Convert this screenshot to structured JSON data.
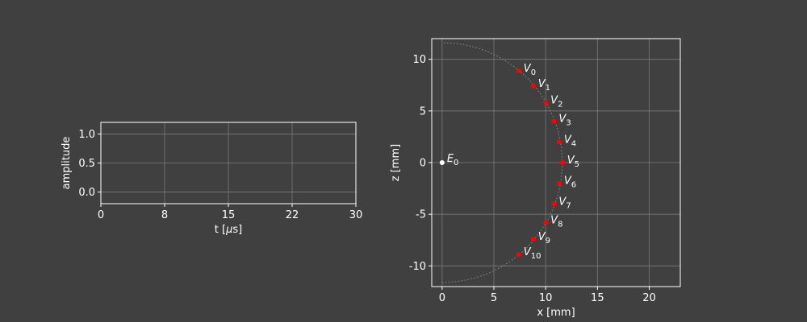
{
  "colors": {
    "background": "#404040",
    "axes": "#ffffff",
    "grid": "#7a7a7a",
    "element_points": "#ff0000",
    "emitter_point": "#ffffff",
    "arc": "#8c8c8c"
  },
  "chart_data": [
    {
      "type": "line",
      "title": "",
      "xlabel": "t [μs]",
      "ylabel": "amplitude",
      "xlim": [
        0,
        30
      ],
      "ylim": [
        -0.2,
        1.2
      ],
      "xticks": [
        0,
        7.5,
        15,
        22.5,
        30
      ],
      "xtick_labels": [
        "0",
        "8",
        "15",
        "22",
        "30"
      ],
      "yticks": [
        0.0,
        0.5,
        1.0
      ],
      "ytick_labels": [
        "0.0",
        "0.5",
        "1.0"
      ],
      "grid": true,
      "series": []
    },
    {
      "type": "scatter",
      "title": "",
      "xlabel": "x [mm]",
      "ylabel": "z [mm]",
      "xlim": [
        -1,
        23
      ],
      "ylim": [
        -12,
        12
      ],
      "xticks": [
        0,
        5,
        10,
        15,
        20
      ],
      "xtick_labels": [
        "0",
        "5",
        "10",
        "15",
        "20"
      ],
      "yticks": [
        10,
        5,
        0,
        -5,
        -10
      ],
      "ytick_labels": [
        "10",
        "5",
        "0",
        "-5",
        "-10"
      ],
      "grid": true,
      "arc": {
        "radius": 11.6,
        "theta_start_deg": -90,
        "theta_end_deg": 90,
        "style": "dotted"
      },
      "receivers": {
        "base": "V",
        "x": [
          7.4,
          8.8,
          10.0,
          10.8,
          11.3,
          11.6,
          11.3,
          10.8,
          10.0,
          8.8,
          7.4
        ],
        "z": [
          8.9,
          7.4,
          5.8,
          4.0,
          2.0,
          0.0,
          -2.0,
          -4.0,
          -5.8,
          -7.4,
          -8.9
        ],
        "subscripts": [
          "0",
          "1",
          "2",
          "3",
          "4",
          "5",
          "6",
          "7",
          "8",
          "9",
          "10"
        ]
      },
      "emitter": {
        "base": "E",
        "subscript": "0",
        "x": 0,
        "z": 0
      }
    }
  ]
}
